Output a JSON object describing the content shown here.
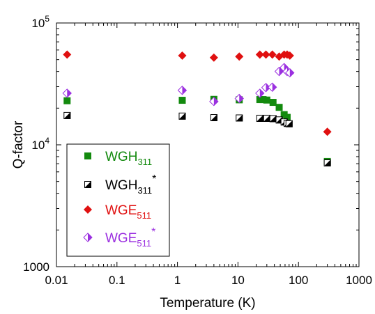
{
  "chart_data": {
    "type": "scatter",
    "xlabel": "Temperature (K)",
    "ylabel": "Q-factor",
    "x_scale": "log",
    "y_scale": "log",
    "xlim": [
      0.01,
      1000
    ],
    "ylim": [
      1000,
      100000
    ],
    "x_tick_labels": [
      {
        "value": 0.01,
        "label": "0.01"
      },
      {
        "value": 0.1,
        "label": "0.1"
      },
      {
        "value": 1,
        "label": "1"
      },
      {
        "value": 10,
        "label": "10"
      },
      {
        "value": 100,
        "label": "100"
      },
      {
        "value": 1000,
        "label": "1000"
      }
    ],
    "y_tick_labels": [
      {
        "value": 1000,
        "base": "1000",
        "exp": ""
      },
      {
        "value": 10000,
        "base": "10",
        "exp": "4"
      },
      {
        "value": 100000,
        "base": "10",
        "exp": "5"
      }
    ],
    "legend": {
      "placement": "bottom-left"
    },
    "series": [
      {
        "key": "wgh311",
        "legend_main": "WGH",
        "legend_sub": "311",
        "legend_star": "",
        "marker": "square-filled",
        "color": "#138a0e",
        "text_color": "#138a0e",
        "points": [
          [
            0.015,
            23000
          ],
          [
            1.2,
            23200
          ],
          [
            4,
            23600
          ],
          [
            10.5,
            23400
          ],
          [
            23,
            23500
          ],
          [
            26,
            23500
          ],
          [
            30,
            23300
          ],
          [
            38,
            22300
          ],
          [
            48,
            20300
          ],
          [
            58,
            17700
          ],
          [
            65,
            16800
          ],
          [
            300,
            7300
          ]
        ]
      },
      {
        "key": "wgh311star",
        "legend_main": "WGH",
        "legend_sub": "311",
        "legend_star": "*",
        "marker": "square-half",
        "color": "#000000",
        "text_color": "#000000",
        "points": [
          [
            0.015,
            17400
          ],
          [
            1.2,
            17200
          ],
          [
            4,
            16700
          ],
          [
            10.5,
            16600
          ],
          [
            23,
            16500
          ],
          [
            30,
            16500
          ],
          [
            38,
            16400
          ],
          [
            48,
            16000
          ],
          [
            58,
            15400
          ],
          [
            65,
            15000
          ],
          [
            70,
            14900
          ],
          [
            300,
            7100
          ]
        ]
      },
      {
        "key": "wge511",
        "legend_main": "WGE",
        "legend_sub": "511",
        "legend_star": "",
        "marker": "diamond-filled",
        "color": "#e01010",
        "text_color": "#e01010",
        "points": [
          [
            0.015,
            55000
          ],
          [
            1.2,
            54000
          ],
          [
            4,
            52000
          ],
          [
            10.5,
            53000
          ],
          [
            23,
            55000
          ],
          [
            29,
            55000
          ],
          [
            37,
            55000
          ],
          [
            48,
            53000
          ],
          [
            58,
            55000
          ],
          [
            65,
            55000
          ],
          [
            72,
            54000
          ],
          [
            300,
            12800
          ]
        ]
      },
      {
        "key": "wge511star",
        "legend_main": "WGE",
        "legend_sub": "511",
        "legend_star": "*",
        "marker": "diamond-half",
        "color": "#9b30e0",
        "text_color": "#9b30e0",
        "points": [
          [
            0.015,
            26500
          ],
          [
            1.2,
            28000
          ],
          [
            4,
            22700
          ],
          [
            10.5,
            24000
          ],
          [
            23,
            26500
          ],
          [
            29,
            29500
          ],
          [
            37,
            29700
          ],
          [
            48,
            40000
          ],
          [
            58,
            43000
          ],
          [
            65,
            40000
          ],
          [
            72,
            39000
          ]
        ]
      }
    ]
  }
}
